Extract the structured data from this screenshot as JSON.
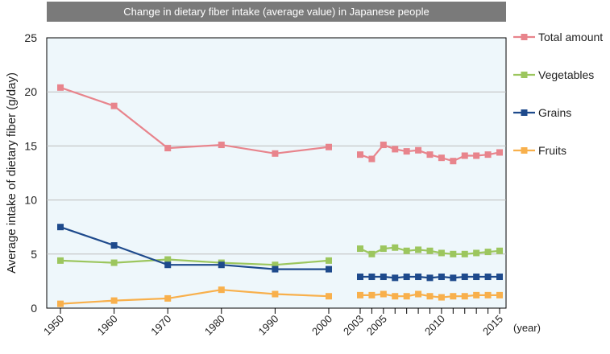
{
  "chart_data": {
    "type": "line",
    "title": "Change in dietary fiber intake (average value) in Japanese people",
    "ylabel": "Average intake of dietary fiber (g/day)",
    "xunit": "(year)",
    "ylim": [
      0,
      25
    ],
    "yticks": [
      0,
      5,
      10,
      15,
      20,
      25
    ],
    "grid": true,
    "legend_position": "right",
    "xtick_labels": [
      "1950",
      "1960",
      "1970",
      "1980",
      "1990",
      "2000",
      "2003",
      "2005",
      "2010",
      "2015"
    ],
    "segments": [
      {
        "name": "early",
        "x": [
          1950,
          1960,
          1970,
          1980,
          1990,
          2000
        ]
      },
      {
        "name": "late",
        "x": [
          2003,
          2004,
          2005,
          2006,
          2007,
          2008,
          2009,
          2010,
          2011,
          2012,
          2013,
          2014,
          2015
        ]
      }
    ],
    "series": [
      {
        "name": "Total amount",
        "color": "#e8848c",
        "early": [
          20.4,
          18.7,
          14.8,
          15.1,
          14.3,
          14.9
        ],
        "late": [
          14.2,
          13.8,
          15.1,
          14.7,
          14.5,
          14.6,
          14.2,
          13.9,
          13.6,
          14.1,
          14.1,
          14.2,
          14.4
        ]
      },
      {
        "name": "Vegetables",
        "color": "#9cc65e",
        "early": [
          4.4,
          4.2,
          4.5,
          4.2,
          4.0,
          4.4
        ],
        "late": [
          5.5,
          5.0,
          5.5,
          5.6,
          5.3,
          5.4,
          5.3,
          5.1,
          5.0,
          5.0,
          5.1,
          5.2,
          5.3
        ]
      },
      {
        "name": "Grains",
        "color": "#1e4a8c",
        "early": [
          7.5,
          5.8,
          4.0,
          4.0,
          3.6,
          3.6
        ],
        "late": [
          2.9,
          2.9,
          2.9,
          2.8,
          2.9,
          2.9,
          2.8,
          2.9,
          2.8,
          2.9,
          2.9,
          2.9,
          2.9
        ]
      },
      {
        "name": "Fruits",
        "color": "#f8b04c",
        "early": [
          0.4,
          0.7,
          0.9,
          1.7,
          1.3,
          1.1
        ],
        "late": [
          1.2,
          1.2,
          1.3,
          1.1,
          1.1,
          1.3,
          1.1,
          1.0,
          1.1,
          1.1,
          1.2,
          1.2,
          1.2
        ]
      }
    ]
  }
}
